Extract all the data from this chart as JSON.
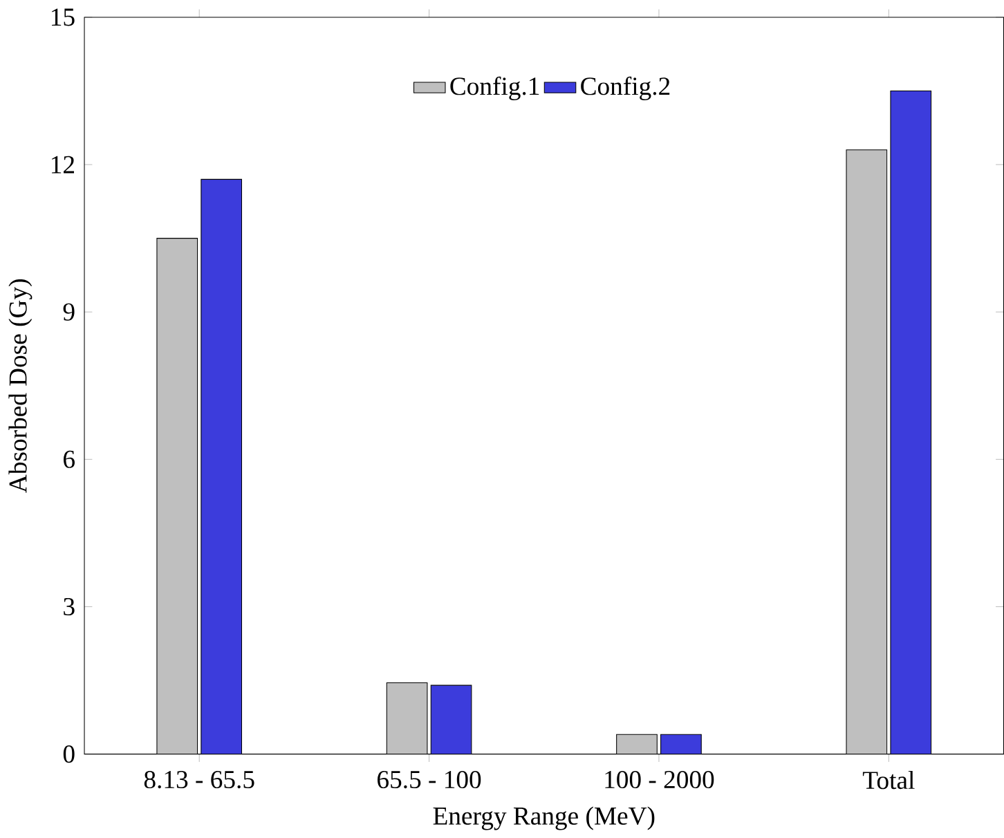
{
  "chart_data": {
    "type": "bar",
    "xlabel": "Energy Range (MeV)",
    "ylabel": "Absorbed Dose (Gy)",
    "categories": [
      "8.13 - 65.5",
      "65.5 - 100",
      "100 - 2000",
      "Total"
    ],
    "series": [
      {
        "name": "Config.1",
        "color": "#bfbfbf",
        "values": [
          10.5,
          1.45,
          0.4,
          12.3
        ]
      },
      {
        "name": "Config.2",
        "color": "#3c3cdc",
        "values": [
          11.7,
          1.4,
          0.4,
          13.5
        ]
      }
    ],
    "ylim": [
      0,
      15
    ],
    "yticks": [
      0,
      3,
      6,
      9,
      12,
      15
    ],
    "legend": "top",
    "grid": false
  }
}
